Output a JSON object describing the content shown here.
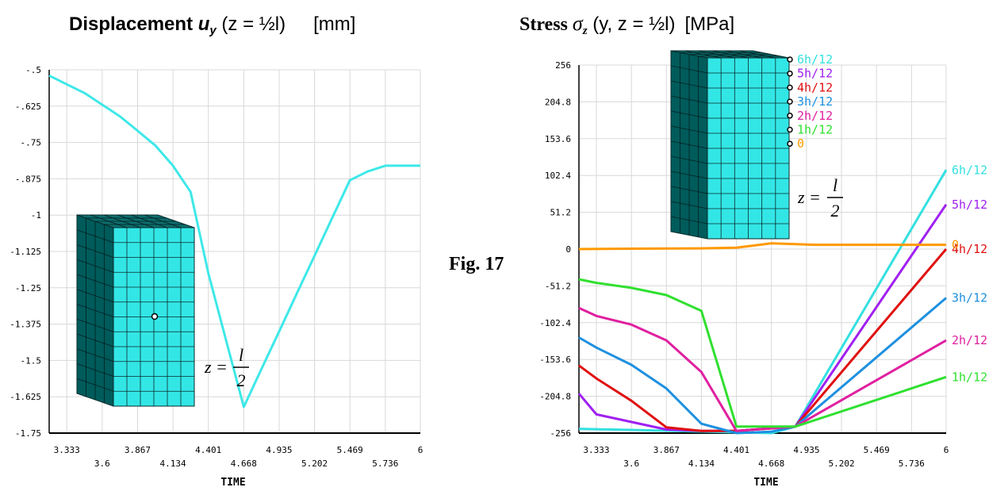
{
  "left_title": {
    "bold": "Displacement ",
    "var": "u",
    "sub": "y",
    "rest": " (z = ½l)",
    "unit": "[mm]"
  },
  "right_title": {
    "bold": "Stress ",
    "var": "σ",
    "sub": "z",
    "rest": " (y, z = ½l)",
    "unit": "[MPa]"
  },
  "figure_label": "Fig. 17",
  "left_eq": {
    "lhs": "z =",
    "num": "l",
    "den": "2"
  },
  "right_eq": {
    "lhs": "z =",
    "num": "l",
    "den": "2"
  },
  "right_inset_labels": [
    "6h/12",
    "5h/12",
    "4h/12",
    "3h/12",
    "2h/12",
    "1h/12",
    "0"
  ],
  "chart_data": [
    {
      "type": "line",
      "xlabel": "TIME",
      "ylabel": "",
      "xlim": [
        3.2,
        6
      ],
      "ylim": [
        -1.75,
        -0.5
      ],
      "xticks_top": [
        "3.333",
        "3.867",
        "4.401",
        "4.935",
        "5.469",
        "6"
      ],
      "xticks_bottom": [
        "3.6",
        "4.134",
        "4.668",
        "5.202",
        "5.736"
      ],
      "yticks": [
        "-.5",
        "-.625",
        "-.75",
        "-.875",
        "-1",
        "-1.125",
        "-1.25",
        "-1.375",
        "-1.5",
        "-1.625",
        "-1.75"
      ],
      "grid": true,
      "series": [
        {
          "color": "#3EE8E8",
          "x": [
            3.2,
            3.333,
            3.467,
            3.6,
            3.733,
            3.867,
            4.0,
            4.134,
            4.267,
            4.401,
            4.534,
            4.668,
            4.801,
            4.935,
            5.068,
            5.202,
            5.335,
            5.469,
            5.602,
            5.736,
            5.869,
            6.0
          ],
          "y": [
            -0.52,
            -0.55,
            -0.58,
            -0.62,
            -0.66,
            -0.71,
            -0.76,
            -0.83,
            -0.92,
            -1.2,
            -1.43,
            -1.66,
            -1.53,
            -1.4,
            -1.27,
            -1.14,
            -1.01,
            -0.88,
            -0.85,
            -0.83,
            -0.83,
            -0.83
          ]
        }
      ]
    },
    {
      "type": "line",
      "xlabel": "TIME",
      "ylabel": "",
      "xlim": [
        3.2,
        6
      ],
      "ylim": [
        -256,
        256
      ],
      "xticks_top": [
        "3.333",
        "3.867",
        "4.401",
        "4.935",
        "5.469",
        "6"
      ],
      "xticks_bottom": [
        "3.6",
        "4.134",
        "4.668",
        "5.202",
        "5.736"
      ],
      "yticks": [
        "256",
        "204.8",
        "153.6",
        "102.4",
        "51.2",
        "0",
        "-51.2",
        "-102.4",
        "-153.6",
        "-204.8",
        "-256"
      ],
      "grid": true,
      "series": [
        {
          "name": "6h/12",
          "color": "#33E0E0",
          "x": [
            3.2,
            4.668,
            4.85,
            6.0
          ],
          "y": [
            -250,
            -256,
            -247,
            110
          ]
        },
        {
          "name": "5h/12",
          "color": "#A020F0",
          "x": [
            3.2,
            3.333,
            3.867,
            4.134,
            4.401,
            4.85,
            6.0
          ],
          "y": [
            -201,
            -230,
            -251,
            -253,
            -253,
            -247,
            62
          ]
        },
        {
          "name": "4h/12",
          "color": "#E01010",
          "x": [
            3.2,
            3.333,
            3.6,
            3.867,
            4.134,
            4.401,
            4.85,
            6.0
          ],
          "y": [
            -162,
            -180,
            -211,
            -248,
            -253,
            -253,
            -247,
            0
          ]
        },
        {
          "name": "3h/12",
          "color": "#1E90E0",
          "x": [
            3.2,
            3.333,
            3.6,
            3.867,
            4.134,
            4.401,
            4.668,
            4.85,
            6.0
          ],
          "y": [
            -123,
            -137,
            -161,
            -194,
            -243,
            -256,
            -254,
            -247,
            -68
          ]
        },
        {
          "name": "2h/12",
          "color": "#E020A0",
          "x": [
            3.2,
            3.333,
            3.6,
            3.867,
            4.134,
            4.401,
            4.85,
            6.0
          ],
          "y": [
            -82,
            -93,
            -105,
            -127,
            -171,
            -253,
            -247,
            -127
          ]
        },
        {
          "name": "1h/12",
          "color": "#30E030",
          "x": [
            3.2,
            3.333,
            3.6,
            3.867,
            4.134,
            4.401,
            4.85,
            6.0
          ],
          "y": [
            -42,
            -47,
            -54,
            -64,
            -86,
            -247,
            -247,
            -178
          ]
        },
        {
          "name": "0",
          "color": "#FF9900",
          "x": [
            3.2,
            3.6,
            4.134,
            4.401,
            4.668,
            5.0,
            5.469,
            6.0
          ],
          "y": [
            0,
            0.5,
            1,
            2,
            8,
            6,
            6,
            6
          ]
        }
      ]
    }
  ]
}
